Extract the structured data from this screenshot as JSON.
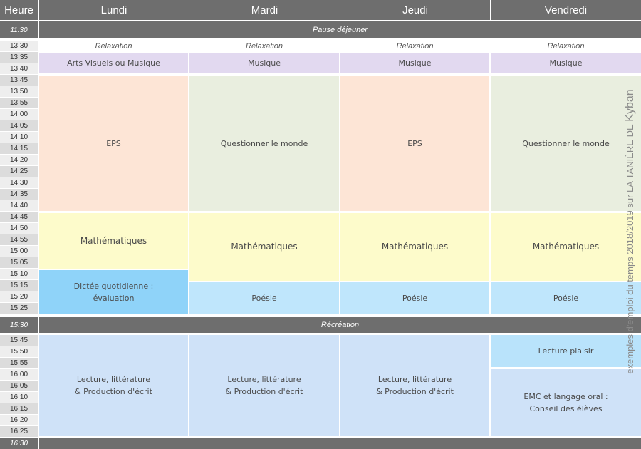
{
  "header": {
    "heure": "Heure",
    "days": [
      "Lundi",
      "Mardi",
      "Jeudi",
      "Vendredi"
    ]
  },
  "times": [
    "11:30",
    "13:30",
    "13:35",
    "13:40",
    "13:45",
    "13:50",
    "13:55",
    "14:00",
    "14:05",
    "14:10",
    "14:15",
    "14:20",
    "14:25",
    "14:30",
    "14:35",
    "14:40",
    "14:45",
    "14:50",
    "14:55",
    "15:00",
    "15:05",
    "15:10",
    "15:15",
    "15:20",
    "15:25",
    "15:30",
    "15:45",
    "15:50",
    "15:55",
    "16:00",
    "16:05",
    "16:10",
    "16:15",
    "16:20",
    "16:25",
    "16:30"
  ],
  "bands": {
    "lunch": "Pause déjeuner",
    "recess": "Récréation"
  },
  "lundi": {
    "relax": "Relaxation",
    "arts": "Arts Visuels ou Musique",
    "eps": "EPS",
    "maths": "Mathématiques",
    "dictee": "Dictée quotidienne :\névaluation",
    "lecture": "Lecture, littérature\n& Production d'écrit"
  },
  "mardi": {
    "relax": "Relaxation",
    "musique": "Musique",
    "monde": "Questionner le monde",
    "maths": "Mathématiques",
    "poesie": "Poésie",
    "lecture": "Lecture, littérature\n& Production d'écrit"
  },
  "jeudi": {
    "relax": "Relaxation",
    "musique": "Musique",
    "eps": "EPS",
    "maths": "Mathématiques",
    "poesie": "Poésie",
    "lecture": "Lecture, littérature\n& Production d'écrit"
  },
  "vendredi": {
    "relax": "Relaxation",
    "musique": "Musique",
    "monde": "Questionner le monde",
    "maths": "Mathématiques",
    "poesie": "Poésie",
    "lecture": "Lecture plaisir",
    "emc": "EMC et langage oral :\nConseil des élèves"
  },
  "watermark": {
    "text": "exemples d'emploi du temps 2018/2019 sur LA TANIÈRE DE ",
    "brand": "Kyban"
  },
  "colors": {
    "header": "#6e6e6e",
    "relax": "#ffffff",
    "music": "#e2d9f0",
    "eps": "#fde5d6",
    "monde": "#e9eedf",
    "maths": "#fdfbcb",
    "dictee": "#8fd3f9",
    "poesie": "#bfe6fc",
    "lecture": "#cfe2f8",
    "lecture_plaisir": "#b9e3fb"
  }
}
